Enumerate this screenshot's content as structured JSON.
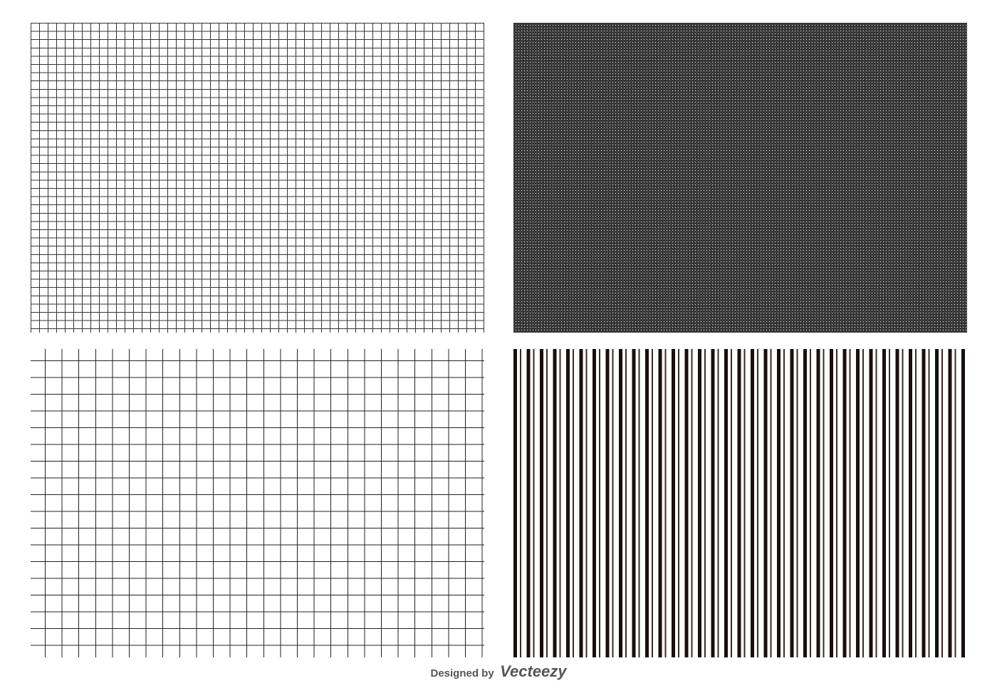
{
  "panels": [
    {
      "pattern": "fine-grid",
      "color": "#333333"
    },
    {
      "pattern": "dense-grid",
      "color": "#222222"
    },
    {
      "pattern": "large-grid",
      "color": "#222222"
    },
    {
      "pattern": "vertical-stripes",
      "color": "#1a0e0e"
    }
  ],
  "credit": {
    "prefix": "Designed by",
    "brand": "Vecteezy"
  }
}
